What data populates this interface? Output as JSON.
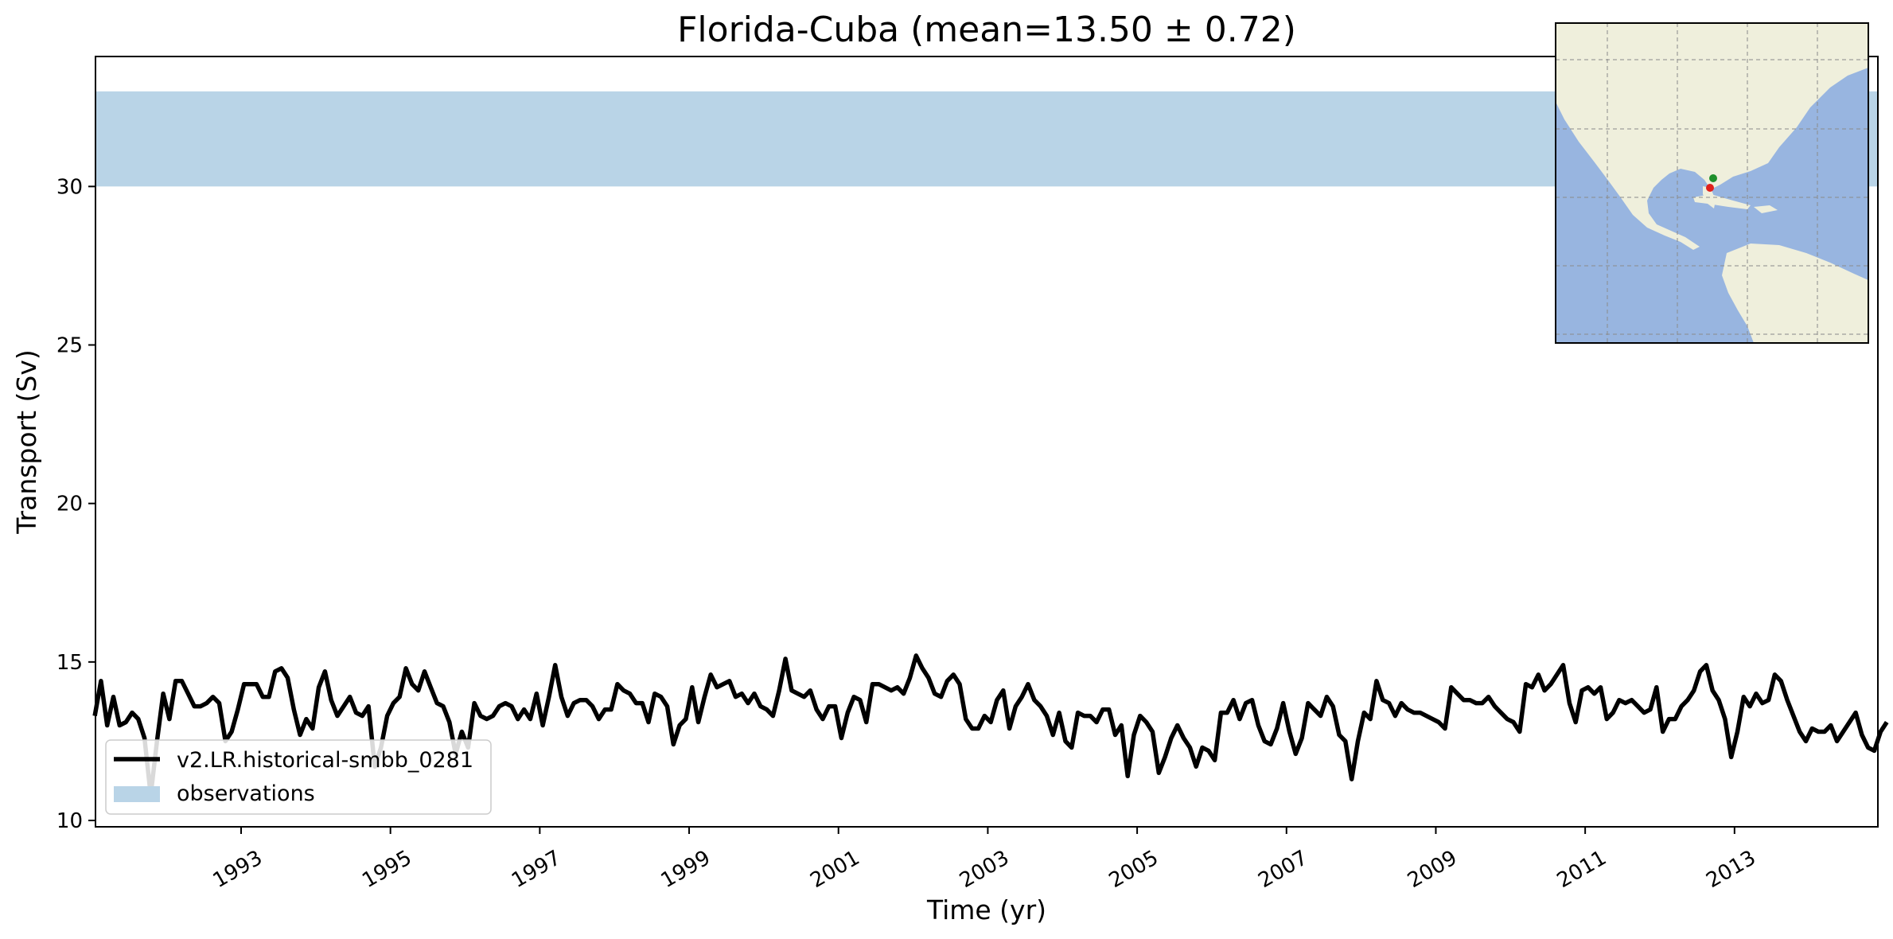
{
  "chart_data": {
    "type": "line",
    "title": "Florida-Cuba (mean=13.50 ± 0.72)",
    "xlabel": "Time (yr)",
    "ylabel": "Transport (Sv)",
    "xlim": [
      1991.05,
      2014.92
    ],
    "ylim": [
      9.8,
      34.1
    ],
    "xticks": [
      1993,
      1995,
      1997,
      1999,
      2001,
      2003,
      2005,
      2007,
      2009,
      2011,
      2013
    ],
    "yticks": [
      10,
      15,
      20,
      25,
      30
    ],
    "observations_band": [
      30,
      33
    ],
    "legend": {
      "placement": "lower-left",
      "entries": [
        {
          "label": "v2.LR.historical-smbb_0281",
          "style": "line",
          "color": "#000000"
        },
        {
          "label": "observations",
          "style": "band",
          "color": "#b9d4e7"
        }
      ]
    },
    "series": [
      {
        "name": "v2.LR.historical-smbb_0281",
        "color": "#000000",
        "x_start": 1991.04,
        "x_step": 0.08333,
        "values": [
          13.3,
          14.4,
          13.0,
          13.9,
          13.0,
          13.1,
          13.4,
          13.2,
          12.6,
          10.8,
          12.5,
          14.0,
          13.2,
          14.4,
          14.4,
          14.0,
          13.6,
          13.6,
          13.7,
          13.9,
          13.7,
          12.5,
          12.8,
          13.5,
          14.3,
          14.3,
          14.3,
          13.9,
          13.9,
          14.7,
          14.8,
          14.5,
          13.5,
          12.7,
          13.2,
          12.9,
          14.2,
          14.7,
          13.8,
          13.3,
          13.6,
          13.9,
          13.4,
          13.3,
          13.6,
          11.7,
          12.3,
          13.3,
          13.7,
          13.9,
          14.8,
          14.3,
          14.1,
          14.7,
          14.2,
          13.7,
          13.6,
          13.1,
          12.1,
          12.8,
          12.3,
          13.7,
          13.3,
          13.2,
          13.3,
          13.6,
          13.7,
          13.6,
          13.2,
          13.5,
          13.2,
          14.0,
          13.0,
          13.9,
          14.9,
          13.9,
          13.3,
          13.7,
          13.8,
          13.8,
          13.6,
          13.2,
          13.5,
          13.5,
          14.3,
          14.1,
          14.0,
          13.7,
          13.7,
          13.1,
          14.0,
          13.9,
          13.6,
          12.4,
          13.0,
          13.2,
          14.2,
          13.1,
          13.9,
          14.6,
          14.2,
          14.3,
          14.4,
          13.9,
          14.0,
          13.7,
          14.0,
          13.6,
          13.5,
          13.3,
          14.1,
          15.1,
          14.1,
          14.0,
          13.9,
          14.1,
          13.5,
          13.2,
          13.6,
          13.6,
          12.6,
          13.4,
          13.9,
          13.8,
          13.1,
          14.3,
          14.3,
          14.2,
          14.1,
          14.2,
          14.0,
          14.5,
          15.2,
          14.8,
          14.5,
          14.0,
          13.9,
          14.4,
          14.6,
          14.3,
          13.2,
          12.9,
          12.9,
          13.3,
          13.1,
          13.8,
          14.1,
          12.9,
          13.6,
          13.9,
          14.3,
          13.8,
          13.6,
          13.3,
          12.7,
          13.4,
          12.5,
          12.3,
          13.4,
          13.3,
          13.3,
          13.1,
          13.5,
          13.5,
          12.7,
          13.0,
          11.4,
          12.7,
          13.3,
          13.1,
          12.8,
          11.5,
          12.0,
          12.6,
          13.0,
          12.6,
          12.3,
          11.7,
          12.3,
          12.2,
          11.9,
          13.4,
          13.4,
          13.8,
          13.2,
          13.7,
          13.8,
          13.0,
          12.5,
          12.4,
          12.9,
          13.7,
          12.8,
          12.1,
          12.6,
          13.7,
          13.5,
          13.3,
          13.9,
          13.6,
          12.7,
          12.5,
          11.3,
          12.5,
          13.4,
          13.2,
          14.4,
          13.8,
          13.7,
          13.3,
          13.7,
          13.5,
          13.4,
          13.4,
          13.3,
          13.2,
          13.1,
          12.9,
          14.2,
          14.0,
          13.8,
          13.8,
          13.7,
          13.7,
          13.9,
          13.6,
          13.4,
          13.2,
          13.1,
          12.8,
          14.3,
          14.2,
          14.6,
          14.1,
          14.3,
          14.6,
          14.9,
          13.7,
          13.1,
          14.1,
          14.2,
          14.0,
          14.2,
          13.2,
          13.4,
          13.8,
          13.7,
          13.8,
          13.6,
          13.4,
          13.5,
          14.2,
          12.8,
          13.2,
          13.2,
          13.6,
          13.8,
          14.1,
          14.7,
          14.9,
          14.1,
          13.8,
          13.2,
          12.0,
          12.8,
          13.9,
          13.6,
          14.0,
          13.7,
          13.8,
          14.6,
          14.4,
          13.8,
          13.3,
          12.8,
          12.5,
          12.9,
          12.8,
          12.8,
          13.0,
          12.5,
          12.8,
          13.1,
          13.4,
          12.7,
          12.3,
          12.2,
          12.8,
          13.1
        ]
      }
    ],
    "inset_map": {
      "description_label": "location-map",
      "land_color": "#efefdc",
      "ocean_color": "#98b5e0",
      "markers": [
        {
          "name": "green-point",
          "color": "#1f8f2b"
        },
        {
          "name": "red-point",
          "color": "#e0201b"
        }
      ]
    }
  }
}
